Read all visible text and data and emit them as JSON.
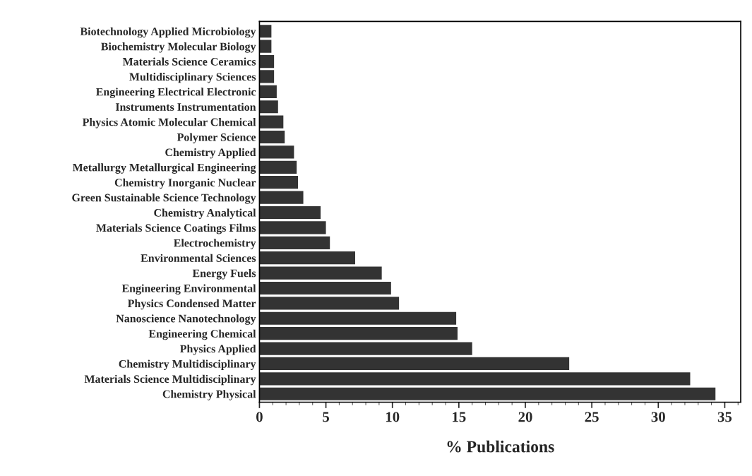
{
  "chart_data": {
    "type": "bar",
    "orientation": "horizontal",
    "xlabel": "% Publications",
    "categories": [
      "Biotechnology Applied Microbiology",
      "Biochemistry Molecular Biology",
      "Materials Science Ceramics",
      "Multidisciplinary Sciences",
      "Engineering Electrical Electronic",
      "Instruments Instrumentation",
      "Physics Atomic Molecular Chemical",
      "Polymer Science",
      "Chemistry Applied",
      "Metallurgy Metallurgical Engineering",
      "Chemistry Inorganic Nuclear",
      "Green Sustainable Science Technology",
      "Chemistry Analytical",
      "Materials Science Coatings Films",
      "Electrochemistry",
      "Environmental Sciences",
      "Energy Fuels",
      "Engineering Environmental",
      "Physics Condensed Matter",
      "Nanoscience Nanotechnology",
      "Engineering Chemical",
      "Physics Applied",
      "Chemistry Multidisciplinary",
      "Materials Science Multidisciplinary",
      "Chemistry Physical"
    ],
    "values": [
      0.9,
      0.9,
      1.1,
      1.1,
      1.3,
      1.4,
      1.8,
      1.9,
      2.6,
      2.8,
      2.9,
      3.3,
      4.6,
      5.0,
      5.3,
      7.2,
      9.2,
      9.9,
      10.5,
      14.8,
      14.9,
      16.0,
      23.3,
      32.4,
      34.3
    ],
    "color": "#333333",
    "xlim": [
      0,
      36.2
    ],
    "xticks": [
      0,
      5,
      10,
      15,
      20,
      25,
      30,
      35
    ],
    "grid": false,
    "legend": false
  }
}
